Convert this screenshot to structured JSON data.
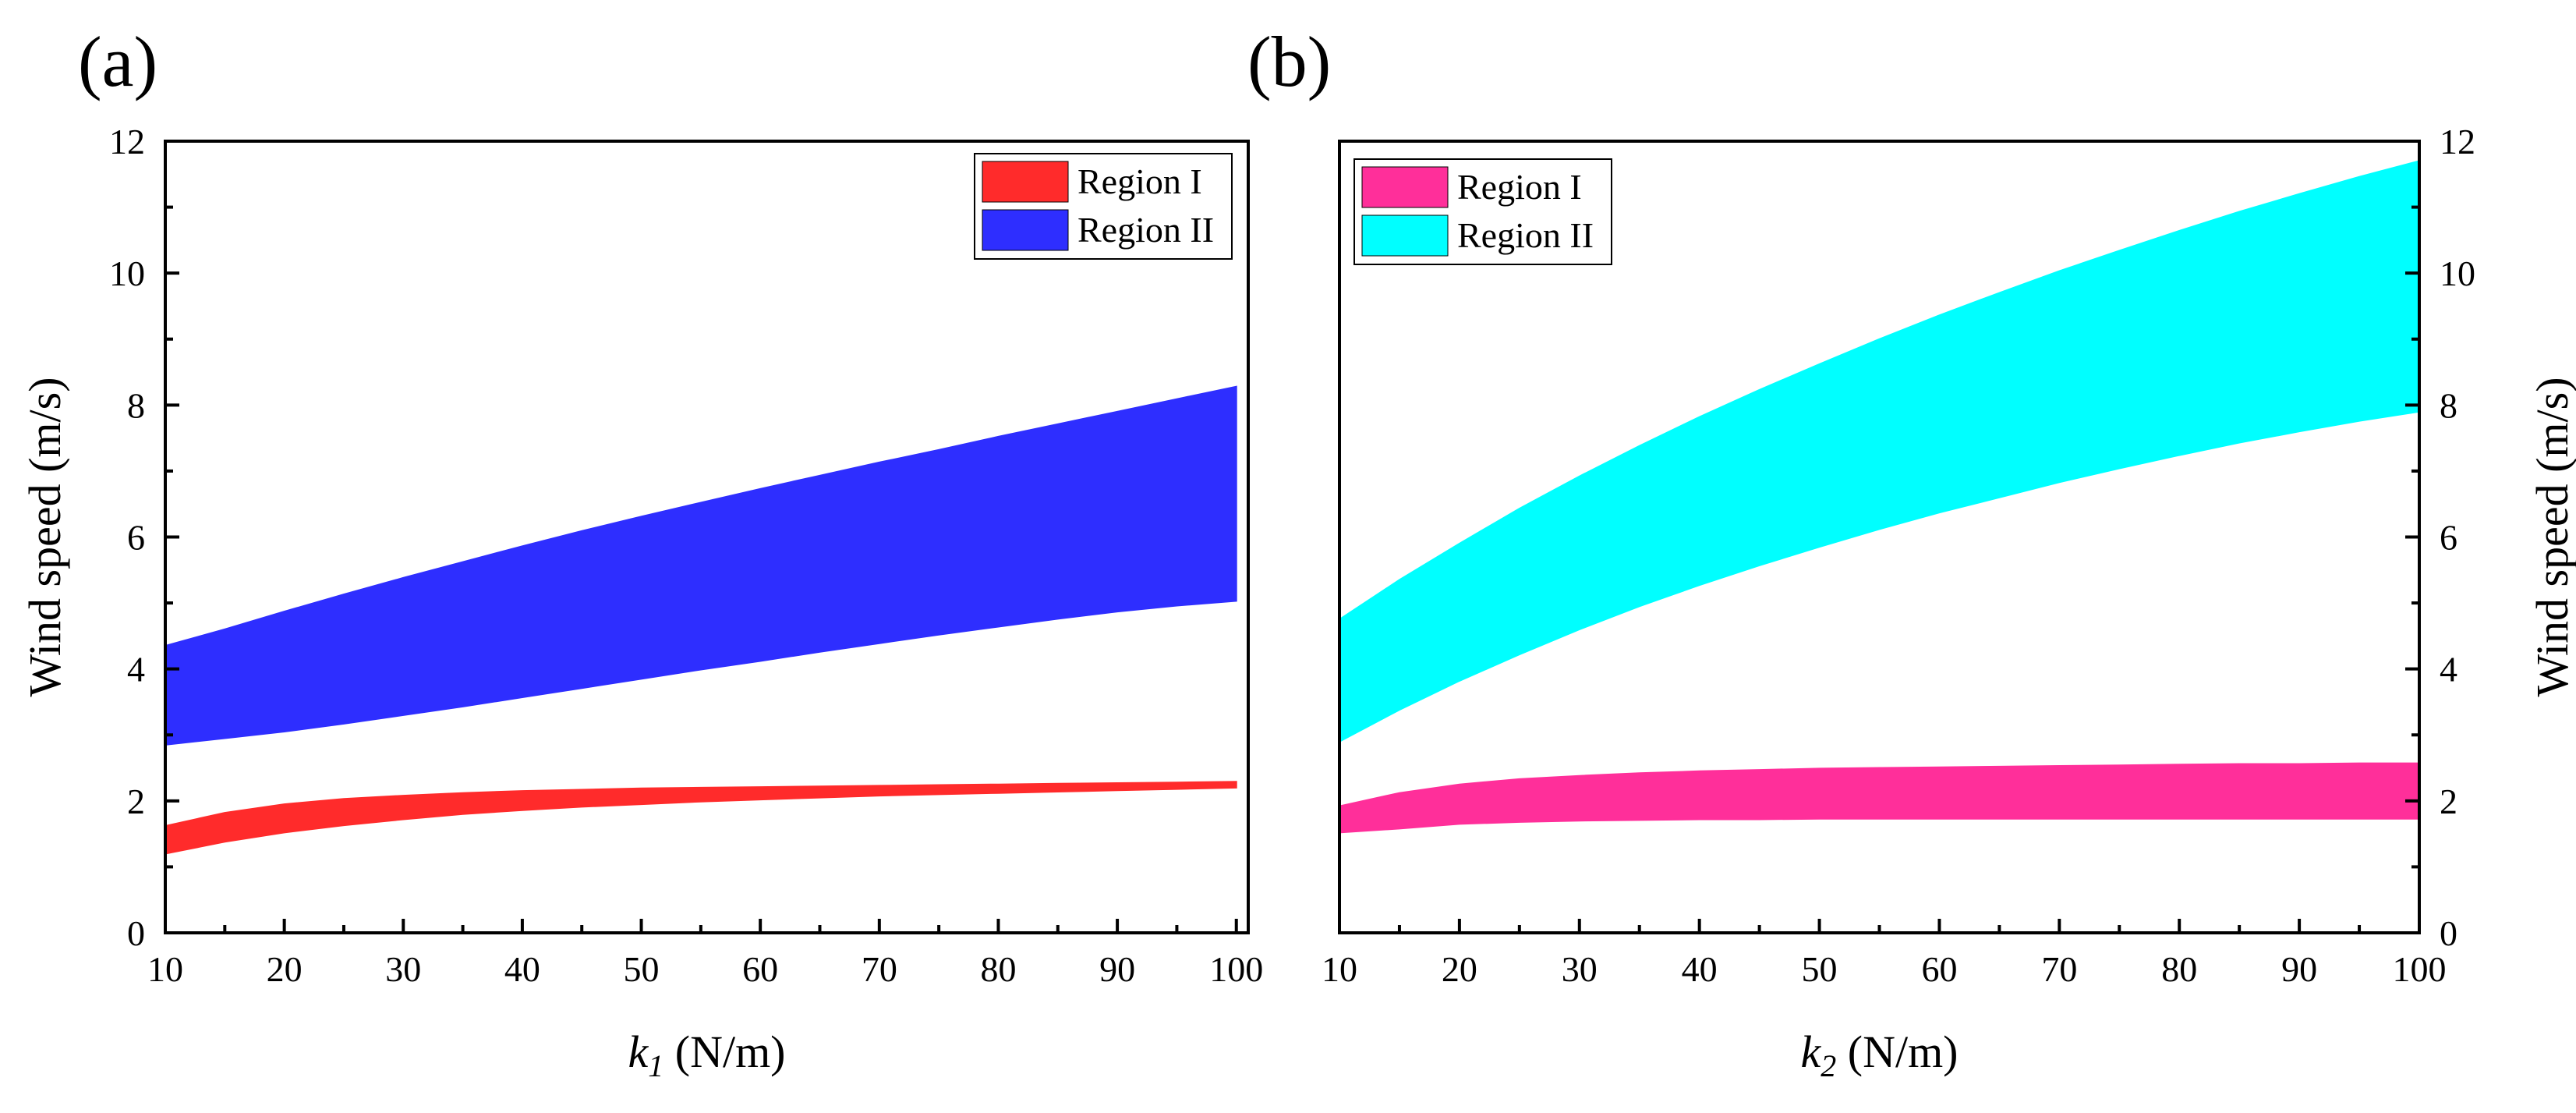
{
  "chart_data": [
    {
      "panel_label": "(a)",
      "type": "area",
      "xlabel_var": "k",
      "xlabel_sub": "1",
      "xlabel_unit": " (N/m)",
      "ylabel": "Wind speed (m/s)",
      "ylabel_side": "left",
      "xlim": [
        10,
        101
      ],
      "ylim": [
        0,
        12
      ],
      "x_ticks": [
        10,
        20,
        30,
        40,
        50,
        60,
        70,
        80,
        90,
        100
      ],
      "y_ticks": [
        0,
        2,
        4,
        6,
        8,
        10,
        12
      ],
      "grid": false,
      "legend_placement": "top-right",
      "x": [
        10,
        15,
        20,
        25,
        30,
        35,
        40,
        45,
        50,
        55,
        60,
        65,
        70,
        75,
        80,
        85,
        90,
        95,
        100
      ],
      "series": [
        {
          "name": "Region I",
          "color": "#ff2b2b",
          "lower": [
            1.2,
            1.38,
            1.52,
            1.63,
            1.72,
            1.8,
            1.86,
            1.91,
            1.95,
            1.99,
            2.02,
            2.05,
            2.08,
            2.1,
            2.12,
            2.14,
            2.16,
            2.18,
            2.2
          ],
          "upper": [
            1.62,
            1.82,
            1.95,
            2.03,
            2.08,
            2.12,
            2.15,
            2.17,
            2.19,
            2.2,
            2.21,
            2.22,
            2.23,
            2.24,
            2.25,
            2.26,
            2.27,
            2.28,
            2.29
          ]
        },
        {
          "name": "Region II",
          "color": "#2e2eff",
          "lower": [
            2.85,
            2.95,
            3.05,
            3.17,
            3.3,
            3.43,
            3.57,
            3.71,
            3.85,
            3.99,
            4.12,
            4.26,
            4.39,
            4.52,
            4.64,
            4.76,
            4.87,
            4.96,
            5.03
          ],
          "upper": [
            4.35,
            4.6,
            4.87,
            5.13,
            5.38,
            5.62,
            5.86,
            6.09,
            6.31,
            6.52,
            6.73,
            6.93,
            7.13,
            7.32,
            7.52,
            7.71,
            7.9,
            8.09,
            8.28
          ]
        }
      ]
    },
    {
      "panel_label": "(b)",
      "type": "area",
      "xlabel_var": "k",
      "xlabel_sub": "2",
      "xlabel_unit": " (N/m)",
      "ylabel": "Wind speed (m/s)",
      "ylabel_side": "right",
      "xlim": [
        10,
        100
      ],
      "ylim": [
        0,
        12
      ],
      "x_ticks": [
        10,
        20,
        30,
        40,
        50,
        60,
        70,
        80,
        90,
        100
      ],
      "y_ticks": [
        0,
        2,
        4,
        6,
        8,
        10,
        12
      ],
      "grid": false,
      "legend_placement": "top-left",
      "x": [
        10,
        15,
        20,
        25,
        30,
        35,
        40,
        45,
        50,
        55,
        60,
        65,
        70,
        75,
        80,
        85,
        90,
        95,
        100
      ],
      "series": [
        {
          "name": "Region I",
          "color": "#ff2f9a",
          "lower": [
            1.52,
            1.58,
            1.65,
            1.68,
            1.7,
            1.71,
            1.72,
            1.72,
            1.73,
            1.73,
            1.73,
            1.73,
            1.73,
            1.73,
            1.73,
            1.73,
            1.73,
            1.73,
            1.73
          ],
          "upper": [
            1.92,
            2.12,
            2.25,
            2.33,
            2.38,
            2.42,
            2.45,
            2.47,
            2.49,
            2.5,
            2.51,
            2.52,
            2.53,
            2.54,
            2.55,
            2.56,
            2.56,
            2.57,
            2.57
          ]
        },
        {
          "name": "Region II",
          "color": "#00ffff",
          "lower": [
            2.9,
            3.38,
            3.82,
            4.22,
            4.6,
            4.95,
            5.27,
            5.57,
            5.85,
            6.12,
            6.37,
            6.6,
            6.83,
            7.04,
            7.24,
            7.43,
            7.6,
            7.76,
            7.9
          ],
          "upper": [
            4.75,
            5.35,
            5.9,
            6.43,
            6.92,
            7.38,
            7.82,
            8.23,
            8.62,
            9.0,
            9.36,
            9.7,
            10.03,
            10.34,
            10.64,
            10.93,
            11.2,
            11.46,
            11.7
          ]
        }
      ]
    }
  ]
}
